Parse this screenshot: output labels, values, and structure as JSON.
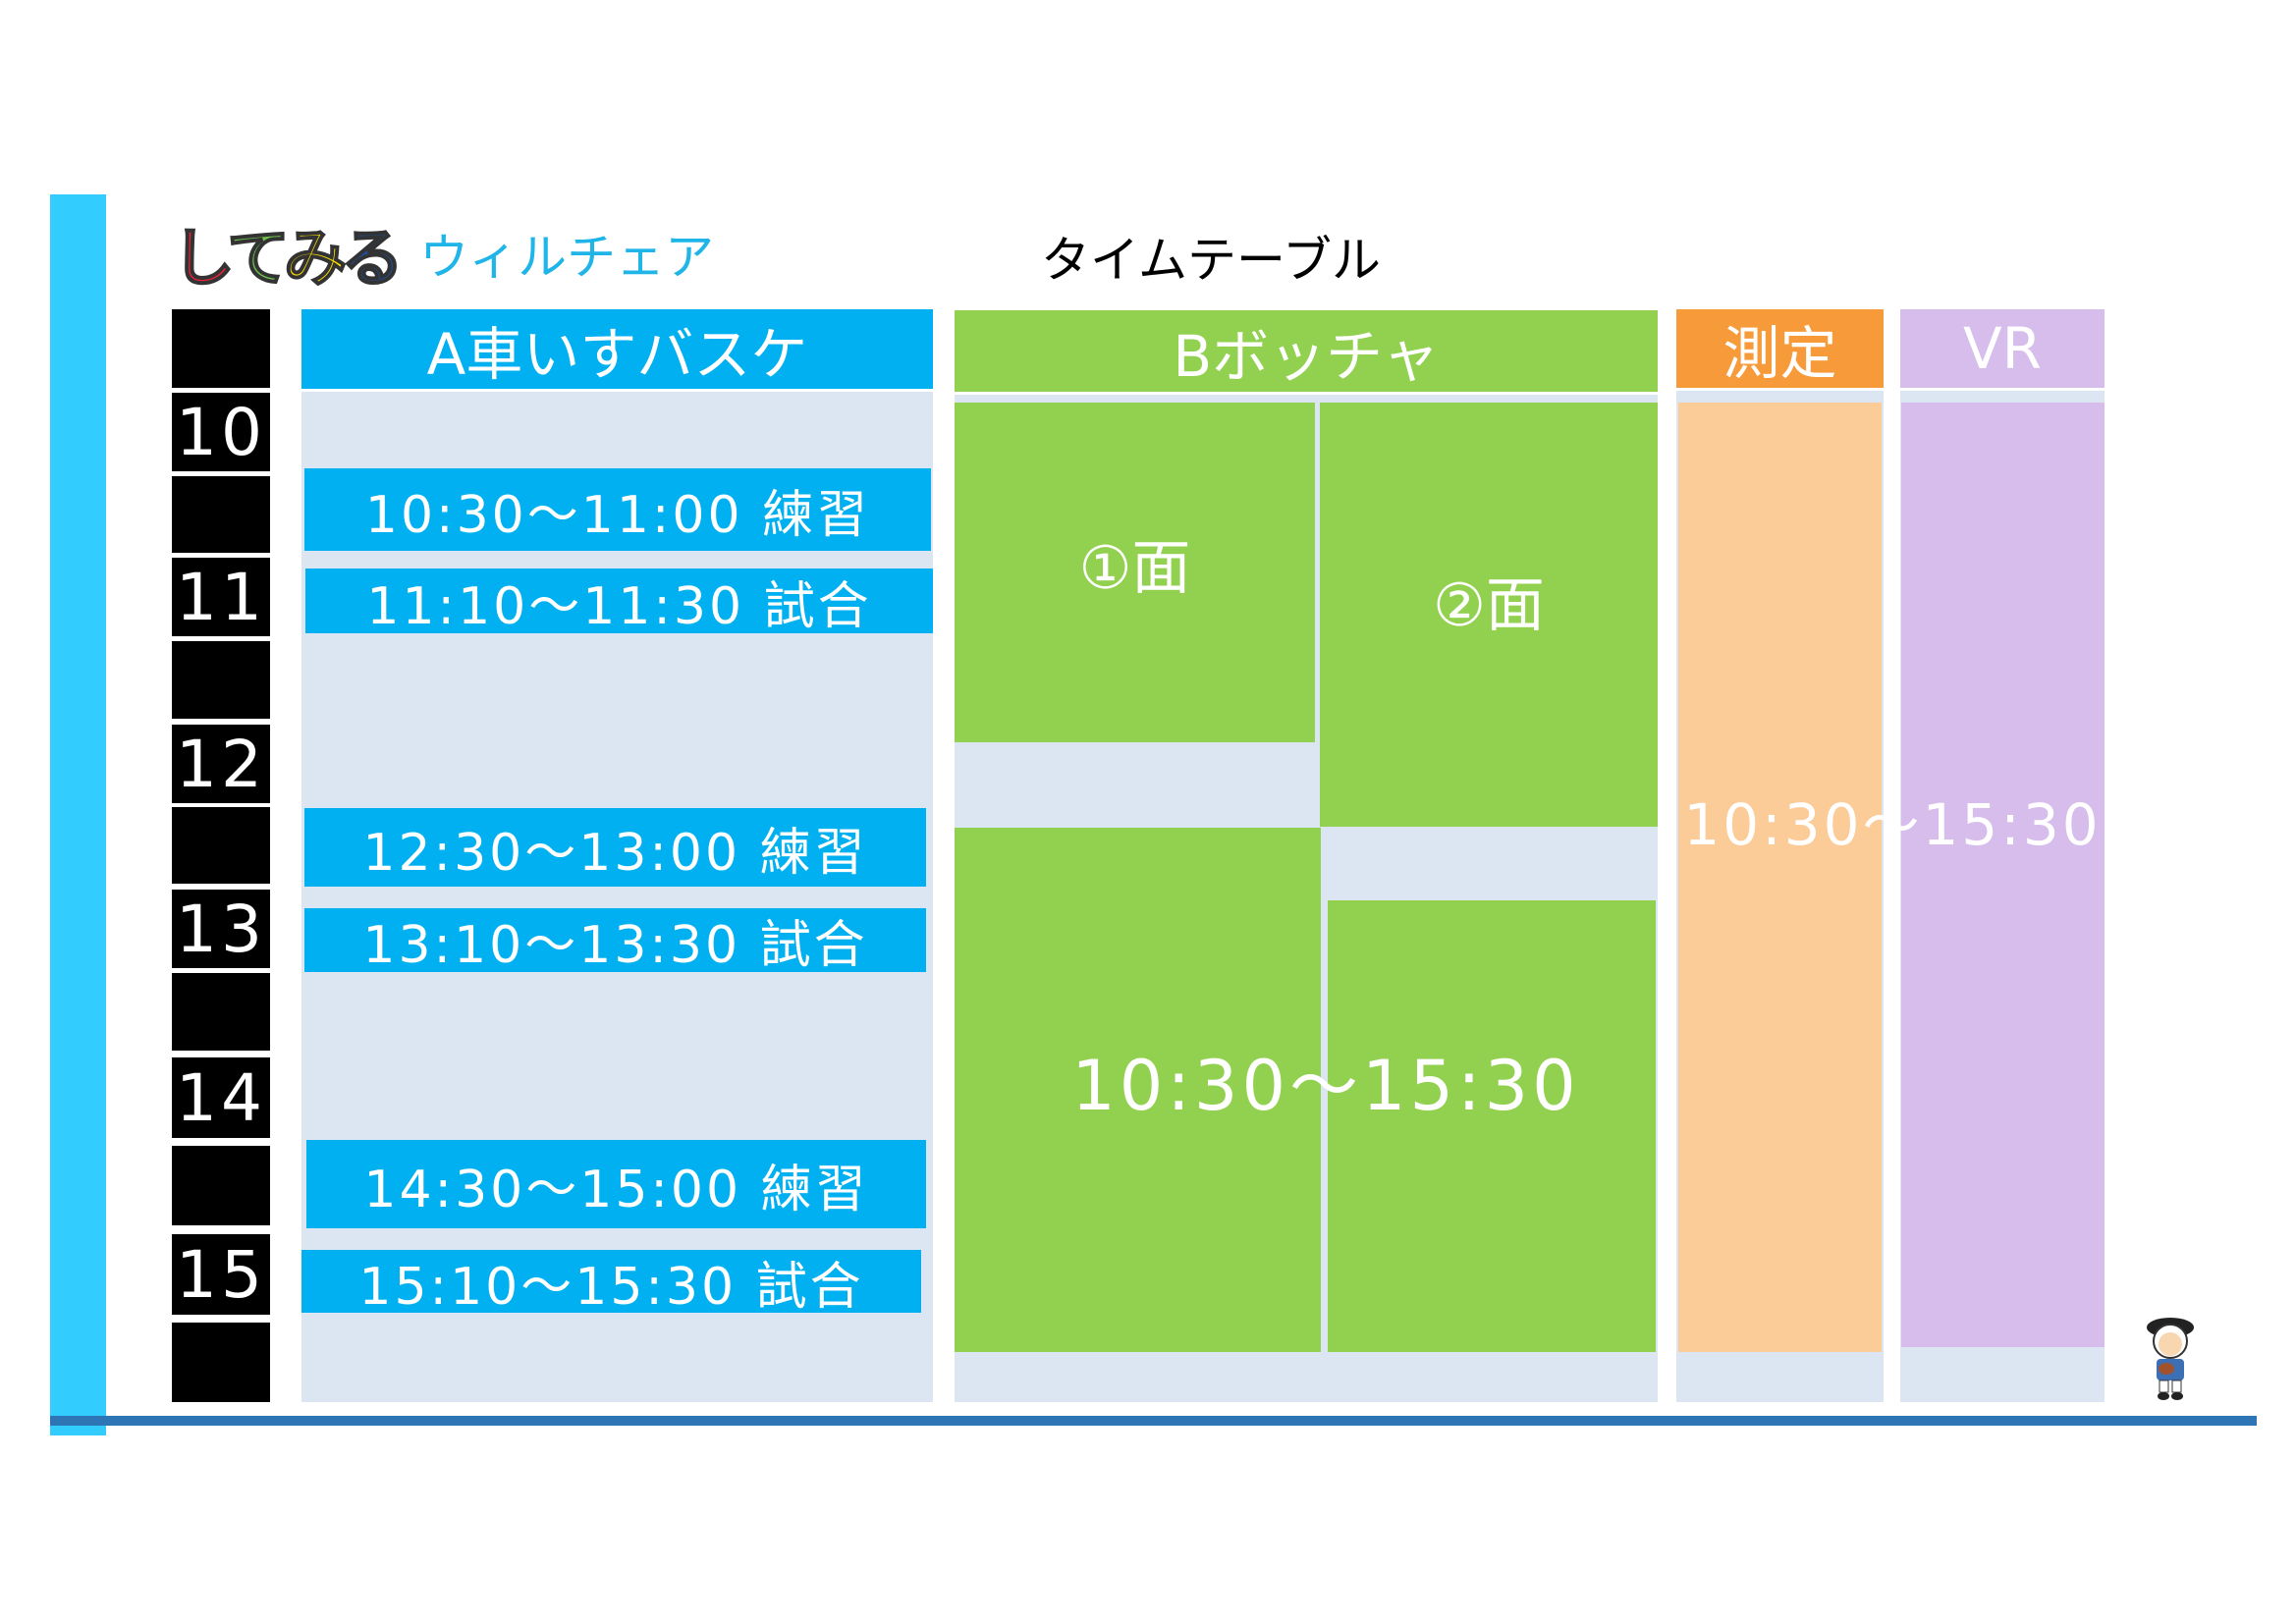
{
  "logo": {
    "brand": "してみる",
    "subtitle": "ウィルチェア"
  },
  "title": "タイムテーブル",
  "hours": [
    "10",
    "11",
    "12",
    "13",
    "14",
    "15"
  ],
  "columns": {
    "a": {
      "header": "A車いすバスケ",
      "color": "#00b0f0",
      "events": [
        {
          "label": "10:30～11:00 練習"
        },
        {
          "label": "11:10～11:30 試合"
        },
        {
          "label": "12:30～13:00 練習"
        },
        {
          "label": "13:10～13:30 試合"
        },
        {
          "label": "14:30～15:00 練習"
        },
        {
          "label": "15:10～15:30 試合"
        }
      ]
    },
    "b": {
      "header": "Bボッチャ",
      "color": "#92d050",
      "court1": "①面",
      "court2": "②面",
      "time": "10:30～15:30"
    },
    "measure": {
      "header": "測定",
      "color": "#f79a3a",
      "block_color": "#fbcb98"
    },
    "vr": {
      "header": "VR",
      "color": "#d6bdec",
      "block_color": "#d6bdec"
    },
    "measure_vr_time": "10:30～15:30"
  },
  "colors": {
    "accent_bar": "#33ccff",
    "bottom_line": "#2e75b6",
    "slot_bg": "#dce6f2"
  }
}
